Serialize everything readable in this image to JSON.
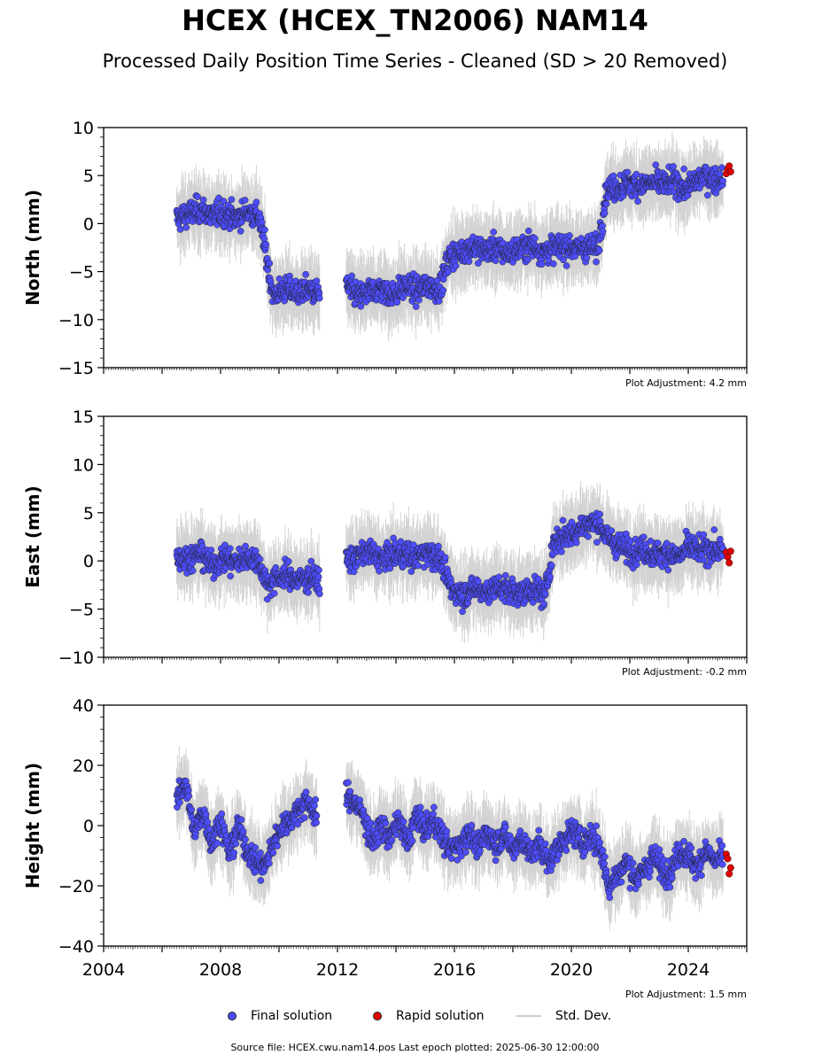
{
  "header": {
    "title": "HCEX (HCEX_TN2006) NAM14",
    "subtitle": "Processed Daily Position Time Series - Cleaned (SD > 20 Removed)"
  },
  "legend": {
    "final_label": "Final solution",
    "rapid_label": "Rapid solution",
    "std_label": "Std. Dev."
  },
  "footer": {
    "source": "Source file: HCEX.cwu.nam14.pos  Last epoch plotted: 2025-06-30 12:00:00"
  },
  "colors": {
    "final": "#4d4dff",
    "rapid": "#e00000",
    "std": "#b0b0b0",
    "marker_edge": "#222222"
  },
  "chart_data": [
    {
      "type": "scatter",
      "ylabel": "North (mm)",
      "ylim": [
        -15,
        10
      ],
      "yticks": [
        -15,
        -10,
        -5,
        0,
        5,
        10
      ],
      "xlim": [
        2004,
        2026
      ],
      "adjustment": "Plot Adjustment: 4.2 mm",
      "series": [
        {
          "name": "Final solution",
          "x": [
            2006.5,
            2006.9,
            2007.3,
            2007.7,
            2008.1,
            2008.5,
            2008.9,
            2009.3,
            2009.55,
            2009.8,
            2010.2,
            2010.6,
            2011.0,
            2011.4,
            2012.3,
            2012.7,
            2013.1,
            2013.5,
            2013.9,
            2014.3,
            2014.7,
            2015.1,
            2015.5,
            2015.8,
            2016.2,
            2016.6,
            2017.0,
            2017.4,
            2017.8,
            2018.2,
            2018.6,
            2019.0,
            2019.4,
            2019.8,
            2020.2,
            2020.6,
            2020.9,
            2021.2,
            2021.6,
            2022.0,
            2022.4,
            2022.8,
            2023.2,
            2023.6,
            2023.9,
            2024.3,
            2024.6,
            2024.9,
            2025.2
          ],
          "y": [
            0.5,
            1.0,
            1.5,
            0.8,
            1.2,
            0.5,
            1.3,
            0.8,
            -3.0,
            -7.5,
            -6.8,
            -7.2,
            -6.9,
            -7.3,
            -6.5,
            -7.6,
            -7.1,
            -6.8,
            -7.4,
            -6.5,
            -7.0,
            -6.4,
            -6.9,
            -3.5,
            -3.0,
            -2.4,
            -2.8,
            -2.5,
            -3.1,
            -2.7,
            -2.2,
            -2.9,
            -2.6,
            -2.3,
            -2.7,
            -2.4,
            -2.6,
            3.5,
            3.8,
            4.2,
            4.0,
            4.3,
            4.1,
            4.4,
            3.5,
            4.5,
            5.0,
            4.6,
            4.8
          ]
        },
        {
          "name": "Rapid solution",
          "x": [
            2025.3,
            2025.35,
            2025.4,
            2025.45
          ],
          "y": [
            5.2,
            5.7,
            6.0,
            5.4
          ]
        }
      ]
    },
    {
      "type": "scatter",
      "ylabel": "East (mm)",
      "ylim": [
        -10,
        15
      ],
      "yticks": [
        -10,
        -5,
        0,
        5,
        10,
        15
      ],
      "xlim": [
        2004,
        2026
      ],
      "adjustment": "Plot Adjustment: -0.2 mm",
      "series": [
        {
          "name": "Final solution",
          "x": [
            2006.5,
            2006.9,
            2007.3,
            2007.7,
            2008.1,
            2008.5,
            2008.9,
            2009.3,
            2009.6,
            2009.9,
            2010.3,
            2010.7,
            2011.1,
            2011.4,
            2012.3,
            2012.7,
            2013.1,
            2013.5,
            2013.9,
            2014.3,
            2014.7,
            2015.1,
            2015.5,
            2015.9,
            2016.3,
            2016.7,
            2017.1,
            2017.5,
            2017.9,
            2018.3,
            2018.7,
            2019.1,
            2019.4,
            2019.7,
            2020.1,
            2020.5,
            2020.9,
            2021.3,
            2021.7,
            2022.1,
            2022.5,
            2022.9,
            2023.3,
            2023.7,
            2024.0,
            2024.4,
            2024.8,
            2025.2
          ],
          "y": [
            0.5,
            0.2,
            0.8,
            -0.5,
            0.3,
            -0.2,
            0.4,
            0.0,
            -2.5,
            -1.8,
            -1.5,
            -2.0,
            -1.6,
            -2.2,
            0.0,
            0.5,
            1.0,
            0.2,
            0.6,
            0.8,
            0.3,
            1.1,
            0.2,
            -3.0,
            -3.5,
            -2.8,
            -3.2,
            -2.7,
            -3.1,
            -3.4,
            -2.9,
            -3.6,
            2.0,
            2.5,
            3.0,
            3.8,
            4.0,
            2.2,
            1.5,
            1.0,
            1.2,
            0.6,
            0.8,
            0.4,
            1.5,
            1.0,
            1.3,
            0.8
          ]
        },
        {
          "name": "Rapid solution",
          "x": [
            2025.3,
            2025.35,
            2025.4,
            2025.45
          ],
          "y": [
            0.9,
            0.4,
            -0.2,
            1.0
          ]
        }
      ]
    },
    {
      "type": "scatter",
      "ylabel": "Height (mm)",
      "ylim": [
        -40,
        40
      ],
      "yticks": [
        -40,
        -20,
        0,
        20,
        40
      ],
      "xlim": [
        2004,
        2026
      ],
      "xticks": [
        2004,
        2008,
        2012,
        2016,
        2020,
        2024
      ],
      "adjustment": "Plot Adjustment: 1.5 mm",
      "series": [
        {
          "name": "Final solution",
          "x": [
            2006.5,
            2006.8,
            2007.1,
            2007.4,
            2007.7,
            2008.0,
            2008.3,
            2008.6,
            2008.9,
            2009.2,
            2009.5,
            2009.8,
            2010.1,
            2010.4,
            2010.7,
            2011.0,
            2011.3,
            2012.3,
            2012.6,
            2012.9,
            2013.2,
            2013.5,
            2013.8,
            2014.1,
            2014.4,
            2014.7,
            2015.0,
            2015.3,
            2015.6,
            2015.9,
            2016.2,
            2016.5,
            2016.8,
            2017.1,
            2017.4,
            2017.7,
            2018.0,
            2018.3,
            2018.6,
            2018.9,
            2019.2,
            2019.5,
            2019.8,
            2020.1,
            2020.4,
            2020.7,
            2021.0,
            2021.3,
            2021.6,
            2021.9,
            2022.2,
            2022.5,
            2022.8,
            2023.1,
            2023.4,
            2023.7,
            2024.0,
            2024.3,
            2024.6,
            2024.9,
            2025.2
          ],
          "y": [
            8.0,
            15.0,
            -3.0,
            5.0,
            -6.0,
            2.0,
            -10.0,
            0.0,
            -8.0,
            -12.0,
            -14.0,
            -6.0,
            0.0,
            2.0,
            6.0,
            8.0,
            2.0,
            10.0,
            8.0,
            3.0,
            -6.0,
            0.0,
            -4.0,
            2.0,
            -6.0,
            4.0,
            -2.0,
            2.0,
            -4.0,
            -8.0,
            -6.0,
            -2.0,
            -8.0,
            -2.0,
            -6.0,
            -3.0,
            -8.0,
            -4.0,
            -10.0,
            -6.0,
            -12.0,
            -8.0,
            -4.0,
            -2.0,
            -6.0,
            -3.0,
            -8.0,
            -20.0,
            -16.0,
            -12.0,
            -18.0,
            -15.0,
            -10.0,
            -14.0,
            -16.0,
            -8.0,
            -10.0,
            -14.0,
            -8.0,
            -12.0,
            -10.0
          ]
        },
        {
          "name": "Rapid solution",
          "x": [
            2025.3,
            2025.35,
            2025.4,
            2025.45
          ],
          "y": [
            -9.5,
            -11.0,
            -16.0,
            -14.0
          ]
        }
      ]
    }
  ]
}
